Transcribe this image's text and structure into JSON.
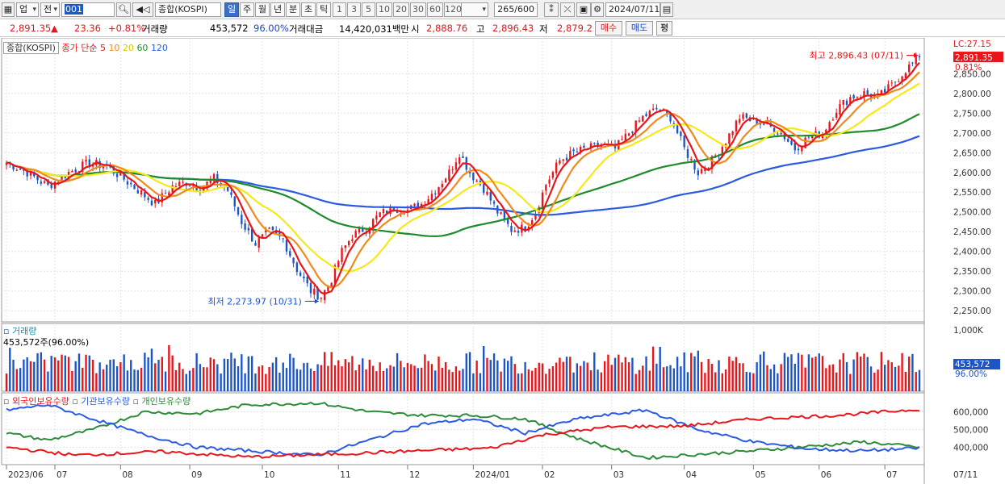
{
  "toolbar": {
    "market_label": "업",
    "prev_label": "전",
    "code_value": "001",
    "index_name": "종합(KOSPI)",
    "periods": [
      "일",
      "주",
      "월",
      "년",
      "분",
      "초",
      "틱"
    ],
    "selected_period": "일",
    "numbers": [
      "1",
      "3",
      "5",
      "10",
      "20",
      "30",
      "60",
      "120"
    ],
    "count_value": "265/600",
    "date_value": "2024/07/11"
  },
  "quote": {
    "price": "2,891.35",
    "change": "23.36",
    "change_pct": "+0.81%",
    "volume_label": "거래량",
    "volume_value": "453,572",
    "volume_ratio": "96.00%",
    "amount_label": "거래대금",
    "amount_value": "14,420,031백만",
    "open_label": "시",
    "open_value": "2,888.76",
    "high_label": "고",
    "high_value": "2,896.43",
    "low_label": "저",
    "low_value": "2,879.2",
    "buy_label": "매수",
    "sell_label": "매도",
    "eval_label": "평"
  },
  "colors": {
    "up": "#e8161b",
    "down": "#1c55c8",
    "ma5": "#e8161b",
    "ma10": "#f08a1c",
    "ma20": "#f5e91b",
    "ma60": "#1e8c2a",
    "ma120": "#2b5be0",
    "foreign": "#e8161b",
    "institution": "#2b5be0",
    "individual": "#2e8b3a"
  },
  "chart_data": [
    {
      "type": "candlestick",
      "legend_box": "종합(KOSPI)",
      "legend_prefix": "종가 단순",
      "ma_periods": [
        "5",
        "10",
        "20",
        "60",
        "120"
      ],
      "ylim": [
        2230,
        2920
      ],
      "y_ticks": [
        "2,850.00",
        "2,800.00",
        "2,750.00",
        "2,700.00",
        "2,650.00",
        "2,600.00",
        "2,550.00",
        "2,500.00",
        "2,450.00",
        "2,400.00",
        "2,350.00",
        "2,300.00",
        "2,250.00"
      ],
      "y_tick_values": [
        2850,
        2800,
        2750,
        2700,
        2650,
        2600,
        2550,
        2500,
        2450,
        2400,
        2350,
        2300,
        2250
      ],
      "top_label": "LC:27.15",
      "price_tag": "2,891.35",
      "pct_tag": "0.81%",
      "max_annotation": "최고 2,896.43 (07/11)",
      "min_annotation": "최저 2,273.97 (10/31)",
      "close_keypoints": [
        [
          0,
          2625
        ],
        [
          6,
          2600
        ],
        [
          12,
          2565
        ],
        [
          18,
          2600
        ],
        [
          24,
          2625
        ],
        [
          29,
          2615
        ],
        [
          33,
          2590
        ],
        [
          38,
          2555
        ],
        [
          43,
          2520
        ],
        [
          48,
          2565
        ],
        [
          52,
          2575
        ],
        [
          56,
          2560
        ],
        [
          60,
          2585
        ],
        [
          64,
          2555
        ],
        [
          68,
          2475
        ],
        [
          72,
          2420
        ],
        [
          76,
          2450
        ],
        [
          80,
          2430
        ],
        [
          84,
          2355
        ],
        [
          88,
          2300
        ],
        [
          91,
          2285
        ],
        [
          94,
          2330
        ],
        [
          97,
          2400
        ],
        [
          100,
          2440
        ],
        [
          104,
          2460
        ],
        [
          108,
          2495
        ],
        [
          112,
          2510
        ],
        [
          116,
          2505
        ],
        [
          120,
          2520
        ],
        [
          124,
          2555
        ],
        [
          128,
          2600
        ],
        [
          131,
          2650
        ],
        [
          134,
          2600
        ],
        [
          138,
          2560
        ],
        [
          142,
          2500
        ],
        [
          146,
          2455
        ],
        [
          150,
          2460
        ],
        [
          153,
          2500
        ],
        [
          156,
          2570
        ],
        [
          160,
          2630
        ],
        [
          164,
          2650
        ],
        [
          168,
          2660
        ],
        [
          172,
          2670
        ],
        [
          176,
          2660
        ],
        [
          180,
          2700
        ],
        [
          184,
          2740
        ],
        [
          188,
          2760
        ],
        [
          192,
          2740
        ],
        [
          196,
          2660
        ],
        [
          200,
          2600
        ],
        [
          204,
          2630
        ],
        [
          208,
          2680
        ],
        [
          212,
          2740
        ],
        [
          216,
          2730
        ],
        [
          220,
          2720
        ],
        [
          224,
          2700
        ],
        [
          228,
          2660
        ],
        [
          232,
          2690
        ],
        [
          236,
          2700
        ],
        [
          240,
          2760
        ],
        [
          244,
          2790
        ],
        [
          248,
          2800
        ],
        [
          252,
          2790
        ],
        [
          256,
          2820
        ],
        [
          260,
          2860
        ],
        [
          264,
          2891.35
        ]
      ]
    },
    {
      "type": "bar",
      "title": "거래량",
      "subtitle": "453,572주(96.00%)",
      "y_top_label": "1,000K",
      "right_value": "453,572",
      "right_pct": "96.00%"
    },
    {
      "type": "line",
      "series": [
        {
          "name": "외국인보유수량"
        },
        {
          "name": "기관보유수량"
        },
        {
          "name": "개인보유수량"
        }
      ],
      "y_ticks": [
        "600,000",
        "500,000",
        "400,000"
      ],
      "y_tick_values": [
        600000,
        500000,
        400000
      ],
      "ylim": [
        320000,
        680000
      ],
      "x_ticks": [
        "2023/06",
        "07",
        "08",
        "09",
        "10",
        "11",
        "12",
        "2024/01",
        "02",
        "03",
        "04",
        "05",
        "06",
        "07"
      ],
      "x_tick_index": [
        0,
        14,
        33,
        53,
        74,
        96,
        116,
        135,
        155,
        175,
        196,
        216,
        235,
        254
      ],
      "x_end_label": "07/11"
    }
  ]
}
